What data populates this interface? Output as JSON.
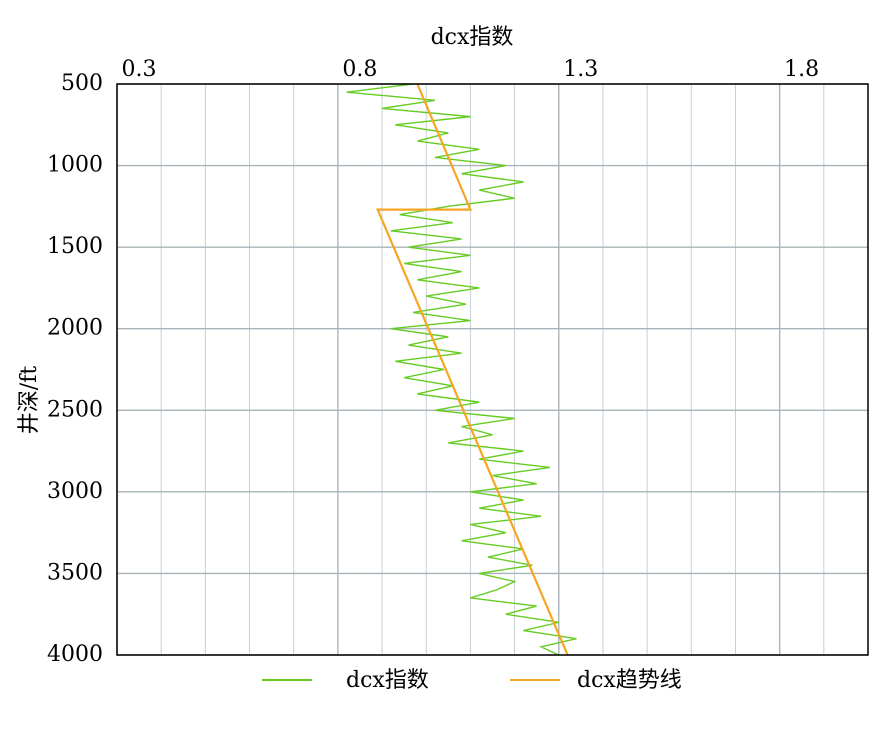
{
  "chart_data": {
    "type": "line",
    "title": "dcx指数",
    "ylabel": "井深/ft",
    "xlim": [
      0.3,
      2.0
    ],
    "xticks": [
      0.3,
      0.8,
      1.3,
      1.8
    ],
    "xminor": [
      0.4,
      0.5,
      0.6,
      0.7,
      0.9,
      1.0,
      1.1,
      1.2,
      1.4,
      1.5,
      1.6,
      1.7,
      1.9
    ],
    "ylim": [
      500,
      4000
    ],
    "yticks": [
      500,
      1000,
      1500,
      2000,
      2500,
      3000,
      3500,
      4000
    ],
    "y_inverted": true,
    "x_axis_position": "top",
    "grid": true,
    "series": [
      {
        "name": "dcx指数",
        "color": "#66cc22",
        "y": [
          500,
          550,
          600,
          650,
          700,
          750,
          800,
          850,
          900,
          950,
          1000,
          1050,
          1100,
          1150,
          1200,
          1250,
          1300,
          1350,
          1400,
          1450,
          1500,
          1550,
          1600,
          1650,
          1700,
          1750,
          1800,
          1850,
          1900,
          1950,
          2000,
          2050,
          2100,
          2150,
          2200,
          2250,
          2300,
          2350,
          2400,
          2450,
          2500,
          2550,
          2600,
          2650,
          2700,
          2750,
          2800,
          2850,
          2900,
          2950,
          3000,
          3050,
          3100,
          3150,
          3200,
          3250,
          3300,
          3350,
          3400,
          3450,
          3500,
          3550,
          3600,
          3650,
          3700,
          3750,
          3800,
          3850,
          3900,
          3950,
          4000
        ],
        "values": [
          0.97,
          0.82,
          1.02,
          0.9,
          1.1,
          0.93,
          1.05,
          0.98,
          1.12,
          1.02,
          1.18,
          1.08,
          1.22,
          1.12,
          1.2,
          1.05,
          0.94,
          1.06,
          0.92,
          1.08,
          0.96,
          1.1,
          0.95,
          1.08,
          0.98,
          1.12,
          1.0,
          1.09,
          0.97,
          1.1,
          0.92,
          1.05,
          0.96,
          1.08,
          0.93,
          1.04,
          0.95,
          1.06,
          0.98,
          1.12,
          1.02,
          1.2,
          1.08,
          1.15,
          1.05,
          1.22,
          1.12,
          1.28,
          1.15,
          1.25,
          1.1,
          1.22,
          1.12,
          1.26,
          1.1,
          1.18,
          1.08,
          1.22,
          1.14,
          1.24,
          1.12,
          1.2,
          1.16,
          1.1,
          1.25,
          1.18,
          1.3,
          1.22,
          1.34,
          1.26,
          1.3
        ]
      },
      {
        "name": "dcx趋势线",
        "color": "#f5a623",
        "y": [
          500,
          1270,
          1270,
          4000
        ],
        "values": [
          0.98,
          1.1,
          0.89,
          1.32
        ]
      }
    ]
  }
}
